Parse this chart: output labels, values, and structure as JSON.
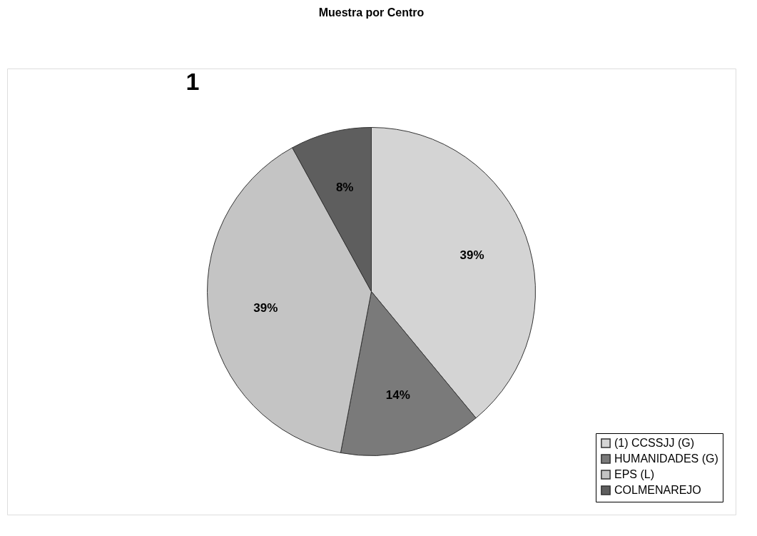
{
  "chart_data": {
    "type": "pie",
    "title": "Muestra por Centro",
    "categories": [
      "(1) CCSSJJ (G)",
      "HUMANIDADES (G)",
      "EPS (L)",
      "COLMENAREJO"
    ],
    "values": [
      39,
      14,
      39,
      8
    ],
    "colors": [
      "#d4d4d4",
      "#7a7a7a",
      "#c4c4c4",
      "#5e5e5e"
    ],
    "value_labels": [
      "39%",
      "14%",
      "39%",
      "8%"
    ],
    "legend": "bottom right",
    "annotations": [
      "1"
    ]
  }
}
